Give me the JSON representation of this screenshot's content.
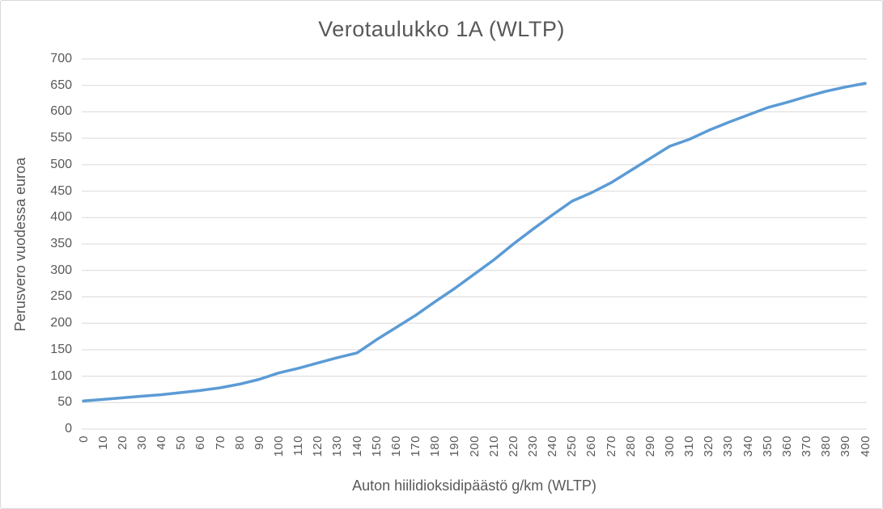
{
  "chart_data": {
    "type": "line",
    "title": "Verotaulukko 1A (WLTP)",
    "xlabel": "Auton hiilidioksidipäästö g/km (WLTP)",
    "ylabel": "Perusvero vuodessa euroa",
    "x": [
      0,
      10,
      20,
      30,
      40,
      50,
      60,
      70,
      80,
      90,
      100,
      110,
      120,
      130,
      140,
      150,
      160,
      170,
      180,
      190,
      200,
      210,
      220,
      230,
      240,
      250,
      260,
      270,
      280,
      290,
      300,
      310,
      320,
      330,
      340,
      350,
      360,
      370,
      380,
      390,
      400
    ],
    "values": [
      53,
      56,
      59,
      62,
      65,
      69,
      73,
      78,
      85,
      94,
      106,
      115,
      125,
      135,
      144,
      169,
      192,
      215,
      241,
      266,
      293,
      320,
      350,
      378,
      405,
      431,
      447,
      466,
      489,
      512,
      535,
      548,
      565,
      580,
      594,
      608,
      618,
      629,
      639,
      647,
      654
    ],
    "xlim": [
      0,
      400
    ],
    "ylim": [
      0,
      700
    ],
    "x_tick_step": 10,
    "y_tick_step": 50,
    "grid": "horizontal",
    "legend": false,
    "line_color": "#5b9bd5",
    "gridline_color": "#d9d9d9",
    "text_color": "#595959",
    "background_color": "#ffffff"
  }
}
